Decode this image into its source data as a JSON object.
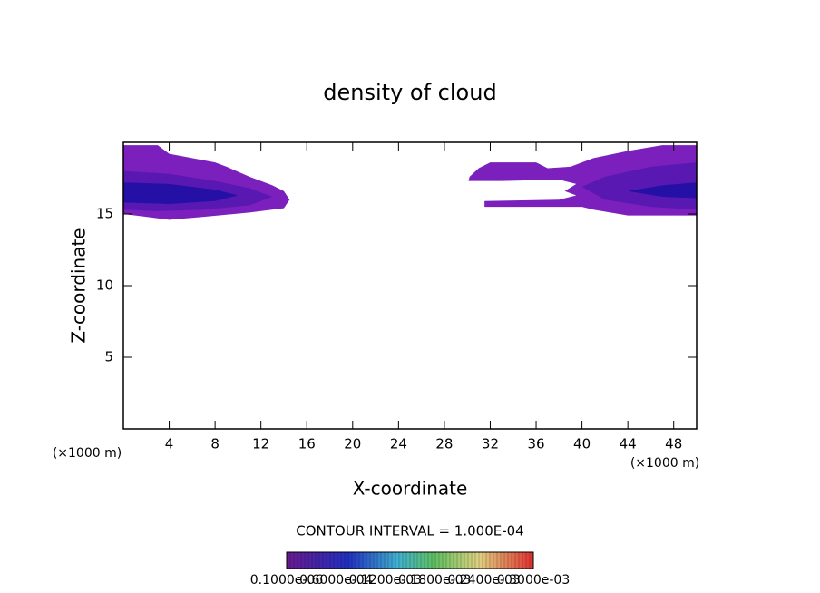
{
  "chart_data": {
    "type": "contour",
    "title": "density of cloud",
    "xlabel": "X-coordinate",
    "ylabel": "Z-coordinate",
    "x_unit_left": "(×1000 m)",
    "x_unit_right": "(×1000 m)",
    "xlim": [
      0,
      50
    ],
    "xticks": [
      4,
      8,
      12,
      16,
      20,
      24,
      28,
      32,
      36,
      40,
      44,
      48
    ],
    "ylim": [
      0,
      20
    ],
    "yticks": [
      5,
      10,
      15
    ],
    "regions": [
      {
        "color": "#7b1fbd",
        "x": [
          0,
          3,
          4,
          6,
          8,
          9,
          11,
          13,
          14,
          14.5,
          14,
          11,
          7,
          4,
          2,
          0
        ],
        "y": [
          19.8,
          19.8,
          19.2,
          18.9,
          18.6,
          18.3,
          17.6,
          17,
          16.6,
          16,
          15.4,
          15.1,
          14.8,
          14.6,
          14.8,
          15
        ]
      },
      {
        "color": "#5a18b3",
        "x": [
          0,
          4,
          8,
          11,
          13,
          11,
          7,
          3,
          0
        ],
        "y": [
          18,
          17.8,
          17.3,
          16.8,
          16.2,
          15.6,
          15.3,
          15.2,
          15.3
        ]
      },
      {
        "color": "#2410a5",
        "x": [
          0,
          4,
          8,
          10,
          8,
          4,
          0
        ],
        "y": [
          17.2,
          17.1,
          16.7,
          16.3,
          15.9,
          15.7,
          15.8
        ]
      },
      {
        "color": "#7b1fbd",
        "x": [
          50,
          47,
          44,
          41,
          39,
          37,
          36,
          32,
          31,
          30.2,
          30.1,
          33,
          38,
          39.5,
          38.5,
          39.5,
          38,
          31.5,
          31.5,
          40,
          41,
          44,
          50
        ],
        "y": [
          19.8,
          19.8,
          19.4,
          18.9,
          18.3,
          18.2,
          18.6,
          18.6,
          18.2,
          17.6,
          17.3,
          17.3,
          17.4,
          17.1,
          16.6,
          16.3,
          16,
          15.9,
          15.5,
          15.5,
          15.3,
          14.9,
          14.9
        ]
      },
      {
        "color": "#5a18b3",
        "x": [
          50,
          46,
          42,
          40,
          42,
          46,
          50
        ],
        "y": [
          18.6,
          18.3,
          17.6,
          16.9,
          16,
          15.5,
          15.3
        ]
      },
      {
        "color": "#2410a5",
        "x": [
          50,
          47,
          44,
          47,
          50
        ],
        "y": [
          17.2,
          17,
          16.6,
          16.2,
          16.1
        ]
      }
    ],
    "contour_interval": "CONTOUR INTERVAL = 1.000E-04",
    "colorbar_labels": [
      "0.1000e-06",
      "0.6000e-04",
      "0.1200e-03",
      "0.1800e-03",
      "0.2400e-03",
      "0.3000e-03"
    ]
  }
}
